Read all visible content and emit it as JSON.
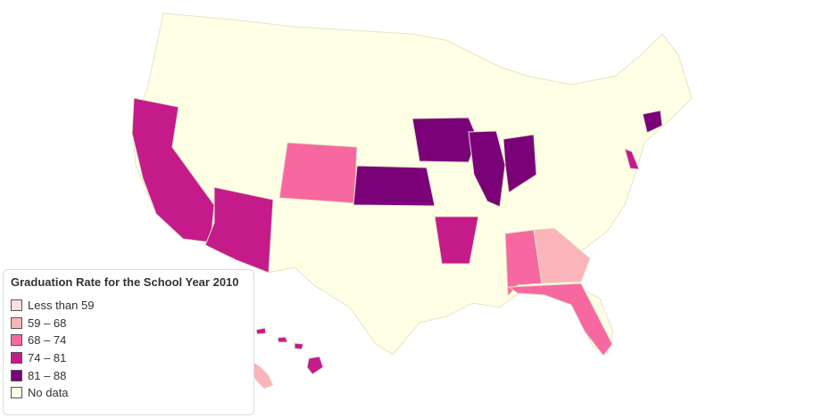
{
  "legend": {
    "title": "Graduation Rate for the School Year 2010",
    "items": [
      {
        "label": "Less than 59",
        "color": "#fde0dd"
      },
      {
        "label": "59 – 68",
        "color": "#fbb4b9"
      },
      {
        "label": "68 – 74",
        "color": "#f768a1"
      },
      {
        "label": "74 – 81",
        "color": "#c51b8a"
      },
      {
        "label": "81 – 88",
        "color": "#7a0177"
      },
      {
        "label": "No data",
        "color": "#ffffe5"
      }
    ]
  },
  "states": [
    {
      "name": "California",
      "bin": 3
    },
    {
      "name": "Arizona",
      "bin": 3
    },
    {
      "name": "Colorado",
      "bin": 2
    },
    {
      "name": "Kansas",
      "bin": 4
    },
    {
      "name": "Iowa",
      "bin": 4
    },
    {
      "name": "Illinois",
      "bin": 4
    },
    {
      "name": "Ohio",
      "bin": 4
    },
    {
      "name": "Arkansas",
      "bin": 3
    },
    {
      "name": "Alabama",
      "bin": 2
    },
    {
      "name": "Georgia",
      "bin": 1
    },
    {
      "name": "Florida",
      "bin": 2
    },
    {
      "name": "Delaware",
      "bin": 3
    },
    {
      "name": "Connecticut",
      "bin": 4
    },
    {
      "name": "Hawaii",
      "bin": 3
    },
    {
      "name": "Alaska",
      "bin": 1
    }
  ]
}
